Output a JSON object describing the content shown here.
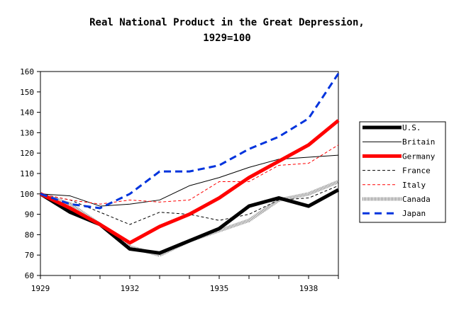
{
  "chart_data": {
    "type": "line",
    "title": "Real National Product in the Great Depression,",
    "subtitle": "1929=100",
    "xlabel": "",
    "ylabel": "",
    "x": [
      1929,
      1930,
      1931,
      1932,
      1933,
      1934,
      1935,
      1936,
      1937,
      1938,
      1939
    ],
    "xlim": [
      1929,
      1939
    ],
    "ylim": [
      60,
      160
    ],
    "x_tick_labels": [
      "1929",
      "1932",
      "1935",
      "1938"
    ],
    "x_ticks": [
      1929,
      1930,
      1931,
      1932,
      1933,
      1934,
      1935,
      1936,
      1937,
      1938,
      1939
    ],
    "y_tick_labels": [
      "60",
      "70",
      "80",
      "90",
      "100",
      "110",
      "120",
      "130",
      "140",
      "150",
      "160"
    ],
    "grid": false,
    "legend_placement": "right",
    "series": [
      {
        "name": "U.S.",
        "color": "#000000",
        "style": "thick-solid",
        "values": [
          100,
          91,
          85,
          73,
          71,
          77,
          83,
          94,
          98,
          94,
          102
        ]
      },
      {
        "name": "Britain",
        "color": "#000000",
        "style": "thin-solid",
        "values": [
          100,
          99,
          94,
          95,
          97,
          104,
          108,
          113,
          117,
          118,
          119
        ]
      },
      {
        "name": "Germany",
        "color": "#ff0000",
        "style": "thick-solid",
        "values": [
          100,
          93,
          85,
          76,
          84,
          90,
          98,
          108,
          116,
          124,
          136
        ]
      },
      {
        "name": "France",
        "color": "#000000",
        "style": "thin-dashed",
        "values": [
          100,
          97,
          91,
          85,
          91,
          90,
          87,
          90,
          97,
          98,
          104
        ]
      },
      {
        "name": "Italy",
        "color": "#ff0000",
        "style": "thin-dashed",
        "values": [
          100,
          97,
          95,
          97,
          96,
          97,
          106,
          106,
          114,
          115,
          124
        ]
      },
      {
        "name": "Canada",
        "color": "#888888",
        "style": "hatched",
        "values": [
          100,
          95,
          85,
          74,
          70,
          77,
          82,
          87,
          97,
          100,
          106
        ]
      },
      {
        "name": "Japan",
        "color": "#0033dd",
        "style": "thick-dashed",
        "values": [
          100,
          95,
          93,
          100,
          111,
          111,
          114,
          122,
          128,
          137,
          159
        ]
      }
    ]
  }
}
